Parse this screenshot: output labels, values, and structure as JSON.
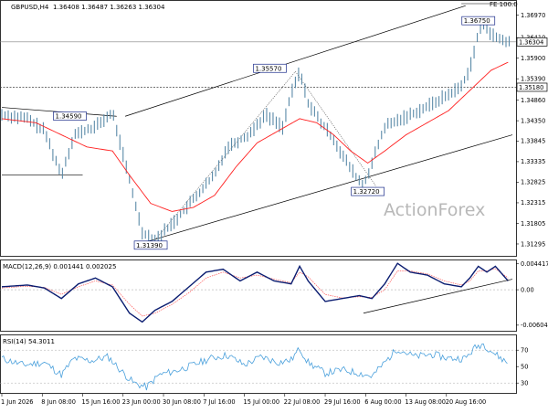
{
  "header": {
    "symbol": "GBPUSD,H4",
    "ohlc": "1.36408 1.36487 1.36263 1.36304",
    "fe_label": "FE 100.0"
  },
  "watermark": "ActionForex",
  "chart_data": {
    "type": "line",
    "main": {
      "ylim": [
        1.31,
        1.3732
      ],
      "ticks": [
        1.3697,
        1.3641,
        1.359,
        1.3539,
        1.3486,
        1.3435,
        1.33845,
        1.33335,
        1.32825,
        1.32315,
        1.31805,
        1.31295
      ],
      "tick_labels": [
        "1.36970",
        "1.36410",
        "1.35900",
        "1.35390",
        "1.34860",
        "1.34350",
        "1.33845",
        "1.33335",
        "1.32825",
        "1.32315",
        "1.31805",
        "1.31295"
      ],
      "current_price": 1.36304,
      "current_price_label": "1.36304",
      "level": 1.3518,
      "level_label": "1.35180",
      "price_series_anchors": [
        [
          0,
          1.345
        ],
        [
          6,
          1.344
        ],
        [
          10,
          1.341
        ],
        [
          14,
          1.33
        ],
        [
          17,
          1.34
        ],
        [
          22,
          1.342
        ],
        [
          26,
          1.3455
        ],
        [
          29,
          1.333
        ],
        [
          33,
          1.316
        ],
        [
          36,
          1.3139
        ],
        [
          41,
          1.319
        ],
        [
          45,
          1.324
        ],
        [
          50,
          1.33
        ],
        [
          53,
          1.337
        ],
        [
          58,
          1.34
        ],
        [
          62,
          1.345
        ],
        [
          66,
          1.342
        ],
        [
          68,
          1.35
        ],
        [
          70,
          1.3557
        ],
        [
          72,
          1.348
        ],
        [
          75,
          1.343
        ],
        [
          78,
          1.339
        ],
        [
          80,
          1.335
        ],
        [
          83,
          1.33
        ],
        [
          85,
          1.3272
        ],
        [
          87,
          1.333
        ],
        [
          90,
          1.342
        ],
        [
          95,
          1.3445
        ],
        [
          100,
          1.347
        ],
        [
          105,
          1.35
        ],
        [
          108,
          1.352
        ],
        [
          110,
          1.3565
        ],
        [
          112,
          1.365
        ],
        [
          113,
          1.3675
        ],
        [
          116,
          1.364
        ],
        [
          119,
          1.363
        ]
      ],
      "ma_series_anchors": [
        [
          0,
          1.344
        ],
        [
          8,
          1.343
        ],
        [
          14,
          1.34
        ],
        [
          20,
          1.337
        ],
        [
          26,
          1.336
        ],
        [
          30,
          1.33
        ],
        [
          35,
          1.323
        ],
        [
          40,
          1.321
        ],
        [
          45,
          1.322
        ],
        [
          50,
          1.325
        ],
        [
          55,
          1.332
        ],
        [
          60,
          1.338
        ],
        [
          65,
          1.341
        ],
        [
          70,
          1.344
        ],
        [
          74,
          1.343
        ],
        [
          78,
          1.34
        ],
        [
          82,
          1.336
        ],
        [
          86,
          1.333
        ],
        [
          90,
          1.336
        ],
        [
          95,
          1.34
        ],
        [
          100,
          1.343
        ],
        [
          105,
          1.346
        ],
        [
          110,
          1.351
        ],
        [
          115,
          1.356
        ],
        [
          119,
          1.358
        ]
      ],
      "channel_upper": [
        [
          29,
          1.3446
        ],
        [
          109,
          1.372
        ]
      ],
      "channel_lower": [
        [
          34,
          1.3135
        ],
        [
          120,
          1.34
        ]
      ],
      "range_top": [
        [
          0,
          1.3468
        ],
        [
          27,
          1.3446
        ]
      ],
      "range_bottom": [
        [
          0,
          1.33
        ],
        [
          19,
          1.33
        ]
      ],
      "rally_dotted": [
        [
          36,
          1.3139
        ],
        [
          69,
          1.3557
        ],
        [
          88,
          1.3272
        ]
      ],
      "annotations": [
        {
          "label": "1.34590",
          "x": 16,
          "y": 1.3459
        },
        {
          "label": "1.35570",
          "x": 63,
          "y": 1.3557
        },
        {
          "label": "1.31390",
          "x": 35,
          "y": 1.3139
        },
        {
          "label": "1.32720",
          "x": 86,
          "y": 1.3272
        },
        {
          "label": "1.36750",
          "x": 112,
          "y": 1.3675
        }
      ]
    },
    "macd": {
      "title": "MACD(12,26,9) 0.001441 0.002025",
      "ylim": [
        -0.007,
        0.005
      ],
      "tick_labels": [
        "0.004417",
        "0.00",
        "-0.006043"
      ],
      "ticks": [
        0.004417,
        0.0,
        -0.006043
      ],
      "macd_anchors": [
        [
          0,
          0.0005
        ],
        [
          6,
          0.0008
        ],
        [
          10,
          0.0003
        ],
        [
          14,
          -0.0015
        ],
        [
          18,
          0.001
        ],
        [
          22,
          0.002
        ],
        [
          26,
          0.0005
        ],
        [
          30,
          -0.004
        ],
        [
          33,
          -0.0055
        ],
        [
          36,
          -0.0035
        ],
        [
          40,
          -0.002
        ],
        [
          44,
          0.0005
        ],
        [
          48,
          0.003
        ],
        [
          52,
          0.0035
        ],
        [
          56,
          0.0015
        ],
        [
          60,
          0.003
        ],
        [
          64,
          0.0015
        ],
        [
          68,
          0.001
        ],
        [
          70,
          0.004
        ],
        [
          72,
          0.0015
        ],
        [
          76,
          -0.002
        ],
        [
          80,
          -0.0015
        ],
        [
          84,
          -0.001
        ],
        [
          87,
          -0.0015
        ],
        [
          90,
          0.001
        ],
        [
          93,
          0.0045
        ],
        [
          96,
          0.003
        ],
        [
          100,
          0.0025
        ],
        [
          104,
          0.001
        ],
        [
          108,
          0.0005
        ],
        [
          110,
          0.002
        ],
        [
          112,
          0.004
        ],
        [
          114,
          0.003
        ],
        [
          116,
          0.004
        ],
        [
          119,
          0.0015
        ]
      ],
      "signal_anchors": [
        [
          0,
          0.0003
        ],
        [
          6,
          0.0006
        ],
        [
          10,
          0.0004
        ],
        [
          14,
          -0.0008
        ],
        [
          18,
          0.0005
        ],
        [
          22,
          0.0015
        ],
        [
          26,
          0.0008
        ],
        [
          30,
          -0.0025
        ],
        [
          33,
          -0.0045
        ],
        [
          36,
          -0.004
        ],
        [
          40,
          -0.0025
        ],
        [
          44,
          -0.0005
        ],
        [
          48,
          0.002
        ],
        [
          52,
          0.003
        ],
        [
          56,
          0.002
        ],
        [
          60,
          0.0025
        ],
        [
          64,
          0.0018
        ],
        [
          68,
          0.0012
        ],
        [
          70,
          0.003
        ],
        [
          72,
          0.0022
        ],
        [
          76,
          -0.0008
        ],
        [
          80,
          -0.0014
        ],
        [
          84,
          -0.0012
        ],
        [
          87,
          -0.0013
        ],
        [
          90,
          0.0
        ],
        [
          93,
          0.0032
        ],
        [
          96,
          0.0032
        ],
        [
          100,
          0.0027
        ],
        [
          104,
          0.0015
        ],
        [
          108,
          0.0008
        ],
        [
          110,
          0.0015
        ],
        [
          112,
          0.0032
        ],
        [
          114,
          0.0032
        ],
        [
          116,
          0.0036
        ],
        [
          119,
          0.002
        ]
      ],
      "trendline": [
        [
          85,
          -0.004
        ],
        [
          120,
          0.0018
        ]
      ]
    },
    "rsi": {
      "title": "RSI(14) 54.3011",
      "ylim": [
        18,
        88
      ],
      "ticks": [
        70,
        50,
        30
      ],
      "tick_labels": [
        "70",
        "50",
        "30"
      ],
      "rsi_anchors": [
        [
          0,
          60
        ],
        [
          5,
          52
        ],
        [
          10,
          55
        ],
        [
          14,
          40
        ],
        [
          17,
          60
        ],
        [
          21,
          57
        ],
        [
          25,
          62
        ],
        [
          28,
          45
        ],
        [
          31,
          30
        ],
        [
          34,
          25
        ],
        [
          37,
          40
        ],
        [
          41,
          45
        ],
        [
          45,
          52
        ],
        [
          49,
          60
        ],
        [
          53,
          64
        ],
        [
          57,
          52
        ],
        [
          61,
          62
        ],
        [
          65,
          55
        ],
        [
          68,
          58
        ],
        [
          70,
          72
        ],
        [
          72,
          55
        ],
        [
          76,
          42
        ],
        [
          80,
          46
        ],
        [
          84,
          42
        ],
        [
          87,
          38
        ],
        [
          90,
          55
        ],
        [
          93,
          72
        ],
        [
          97,
          62
        ],
        [
          101,
          65
        ],
        [
          105,
          60
        ],
        [
          109,
          60
        ],
        [
          111,
          72
        ],
        [
          113,
          78
        ],
        [
          116,
          65
        ],
        [
          119,
          54
        ]
      ]
    },
    "x_axis": {
      "bars": 120,
      "tick_labels": [
        "1 Jun 2026",
        "8 Jun 08:00",
        "15 Jun 16:00",
        "23 Jun 00:00",
        "30 Jun 08:00",
        "7 Jul 16:00",
        "15 Jul 00:00",
        "22 Jul 08:00",
        "29 Jul 16:00",
        "6 Aug 00:00",
        "13 Aug 08:00",
        "20 Aug 16:00"
      ],
      "tick_bars": [
        0,
        9.5,
        19,
        28.5,
        38,
        47.5,
        57,
        66.5,
        76,
        85.5,
        95,
        104.5
      ]
    },
    "colors": {
      "candle": "#5a8aa8",
      "ma": "#ff2020",
      "channel": "#000000",
      "macd": "#0a1c70",
      "signal": "#ff4040",
      "rsi": "#4aa0dc"
    },
    "grid": false
  }
}
